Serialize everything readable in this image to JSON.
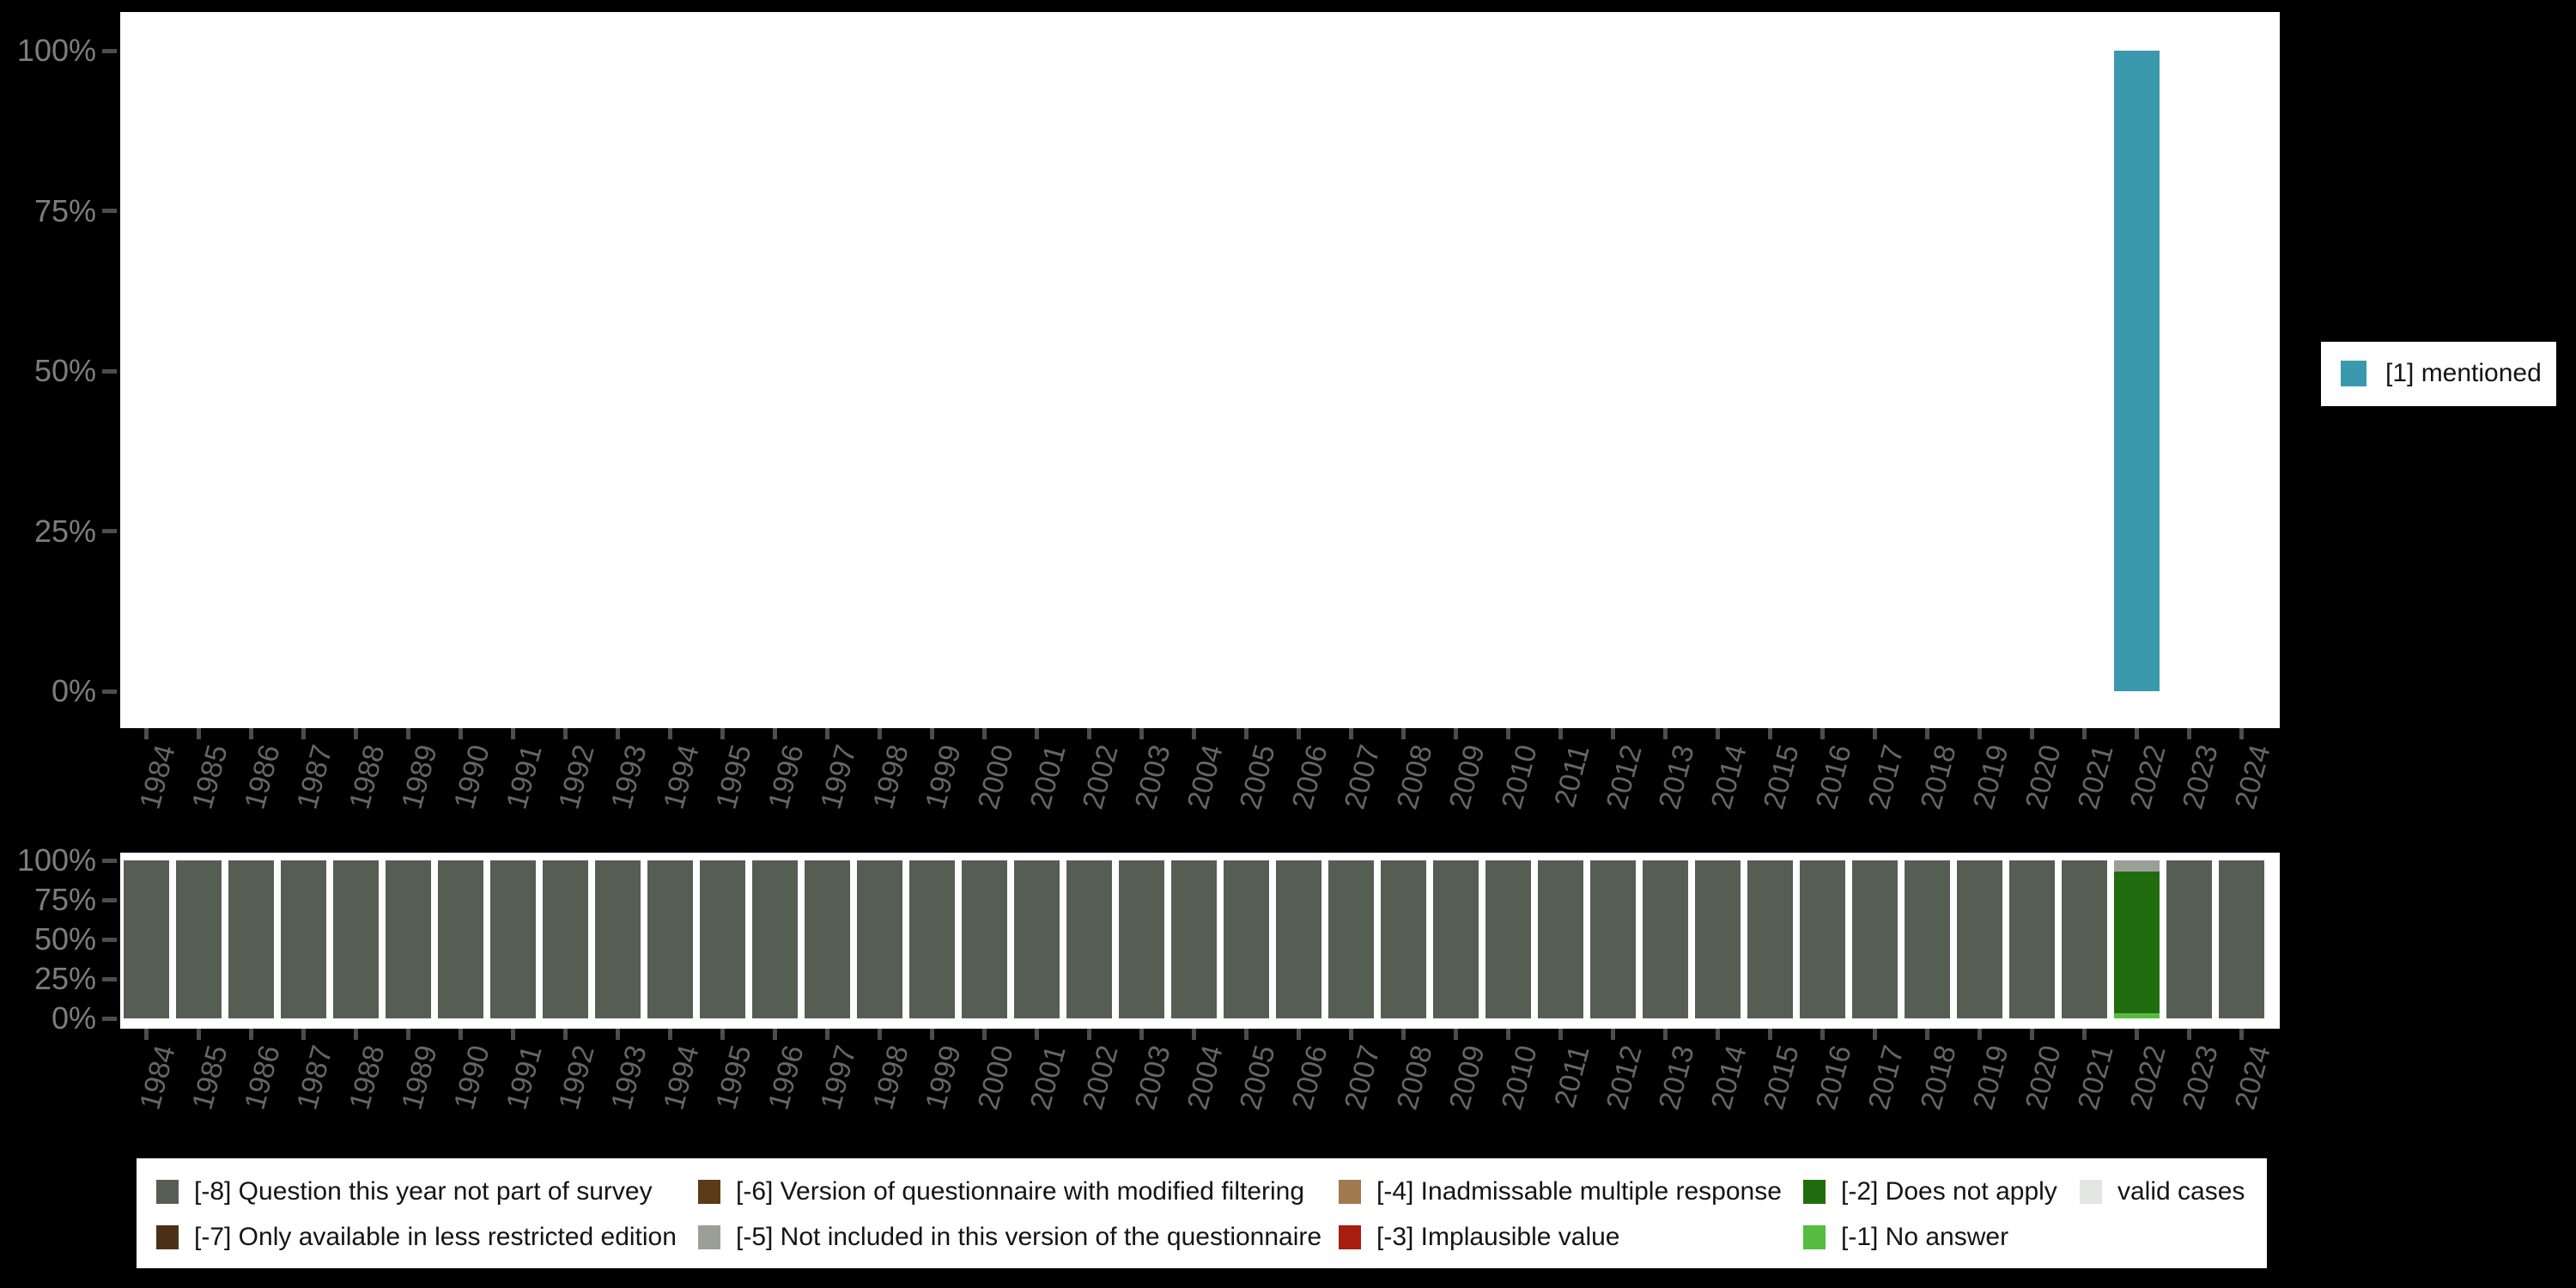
{
  "years": [
    "1984",
    "1985",
    "1986",
    "1987",
    "1988",
    "1989",
    "1990",
    "1991",
    "1992",
    "1993",
    "1994",
    "1995",
    "1996",
    "1997",
    "1998",
    "1999",
    "2000",
    "2001",
    "2002",
    "2003",
    "2004",
    "2005",
    "2006",
    "2007",
    "2008",
    "2009",
    "2010",
    "2011",
    "2012",
    "2013",
    "2014",
    "2015",
    "2016",
    "2017",
    "2018",
    "2019",
    "2020",
    "2021",
    "2022",
    "2023",
    "2024"
  ],
  "y_axis": {
    "tick_labels": [
      "100%",
      "75%",
      "50%",
      "25%",
      "0%"
    ],
    "tick_values": [
      100,
      75,
      50,
      25,
      0
    ]
  },
  "top_legend": {
    "label": "[1] mentioned",
    "swatch_color": "#3b99ae"
  },
  "legend": {
    "rows": [
      [
        {
          "code": "-8",
          "label": "[-8] Question this year not part of survey",
          "color": "#565e54"
        },
        {
          "code": "-6",
          "label": "[-6] Version of questionnaire with modified filtering",
          "color": "#5a3a17"
        },
        {
          "code": "-4",
          "label": "[-4] Inadmissable multiple response",
          "color": "#a07a4e"
        },
        {
          "code": "-2",
          "label": "[-2] Does not apply",
          "color": "#216c0e"
        },
        {
          "code": "valid",
          "label": "valid cases",
          "color": "#e2e6e0"
        }
      ],
      [
        {
          "code": "-7",
          "label": "[-7] Only available in less restricted edition",
          "color": "#4b3118"
        },
        {
          "code": "-5",
          "label": "[-5] Not included in this version of the questionnaire",
          "color": "#9aa097"
        },
        {
          "code": "-3",
          "label": "[-3] Implausible value",
          "color": "#a91c10"
        },
        {
          "code": "-1",
          "label": "[-1] No answer",
          "color": "#56bc40"
        }
      ]
    ]
  },
  "chart_data": [
    {
      "type": "bar",
      "title": "",
      "xlabel": "",
      "ylabel": "",
      "y_unit": "%",
      "ylim": [
        0,
        100
      ],
      "grid": false,
      "legend_position": "right",
      "categories_note": "x categories are the top-level years array, 1984-2024",
      "series": [
        {
          "name": "[1] mentioned",
          "color": "#3b99ae",
          "values_by_year": {
            "2022": 100
          }
        }
      ]
    },
    {
      "type": "stacked_bar",
      "title": "",
      "xlabel": "",
      "ylabel": "",
      "y_unit": "%",
      "ylim": [
        0,
        100
      ],
      "grid": false,
      "legend_position": "bottom",
      "categories_note": "x categories are the top-level years array, 1984-2024",
      "stack_order_note": "segments listed top-to-bottom of each bar",
      "default_stack": [
        {
          "code": "-8",
          "pct": 100
        }
      ],
      "stacks_by_year": {
        "2022": [
          {
            "code": "-5",
            "pct": 7
          },
          {
            "code": "-2",
            "pct": 90
          },
          {
            "code": "-1",
            "pct": 3
          }
        ]
      }
    }
  ]
}
